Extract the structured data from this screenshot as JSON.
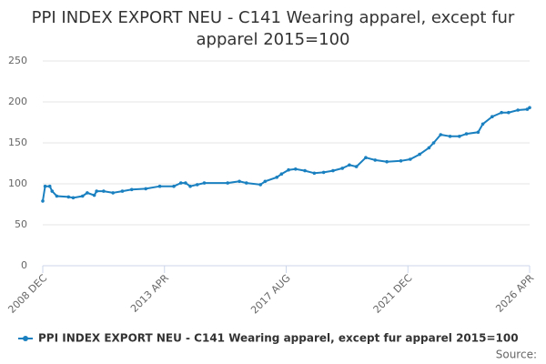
{
  "chart_data": {
    "type": "line",
    "title": "PPI INDEX EXPORT NEU - C141 Wearing apparel, except fur apparel 2015=100",
    "x": [
      "2008 DEC",
      "2009 JAN",
      "2009 MAR",
      "2009 APR",
      "2009 JUN",
      "2009 NOV",
      "2010 JAN",
      "2010 MAY",
      "2010 JUL",
      "2010 OCT",
      "2010 NOV",
      "2011 FEB",
      "2011 JUN",
      "2011 OCT",
      "2012 FEB",
      "2012 AUG",
      "2013 FEB",
      "2013 AUG",
      "2013 NOV",
      "2014 JAN",
      "2014 MAR",
      "2014 JUN",
      "2014 SEP",
      "2015 JUL",
      "2015 DEC",
      "2016 MAR",
      "2016 SEP",
      "2016 NOV",
      "2017 APR",
      "2017 JUN",
      "2017 SEP",
      "2017 DEC",
      "2018 APR",
      "2018 AUG",
      "2018 DEC",
      "2019 APR",
      "2019 AUG",
      "2019 NOV",
      "2020 FEB",
      "2020 JUN",
      "2020 OCT",
      "2021 MAR",
      "2021 SEP",
      "2022 JAN",
      "2022 MAY",
      "2022 SEP",
      "2022 NOV",
      "2023 FEB",
      "2023 JUN",
      "2023 OCT",
      "2024 JAN",
      "2024 JUN",
      "2024 AUG",
      "2024 DEC",
      "2025 APR",
      "2025 JUL",
      "2025 NOV",
      "2026 MAR",
      "2026 APR"
    ],
    "series": [
      {
        "name": "PPI INDEX EXPORT NEU - C141 Wearing apparel, except fur apparel 2015=100",
        "color": "#1a80c0",
        "values": [
          79,
          97,
          97,
          91,
          85,
          84,
          83,
          85,
          89,
          86,
          91,
          91,
          89,
          91,
          93,
          94,
          97,
          97,
          101,
          101,
          97,
          99,
          101,
          101,
          103,
          101,
          99,
          103,
          108,
          112,
          117,
          118,
          116,
          113,
          114,
          116,
          119,
          123,
          121,
          132,
          129,
          127,
          128,
          130,
          136,
          144,
          150,
          160,
          158,
          158,
          161,
          163,
          173,
          182,
          187,
          187,
          190,
          191,
          193
        ]
      }
    ],
    "ylim": [
      0,
      250
    ],
    "yticks": [
      0,
      50,
      100,
      150,
      200,
      250
    ],
    "xlim": [
      "2008 DEC",
      "2026 APR"
    ],
    "xticks": [
      "2008 DEC",
      "2013 APR",
      "2017 AUG",
      "2021 DEC",
      "2026 APR"
    ],
    "grid": true,
    "source": "Source:"
  }
}
